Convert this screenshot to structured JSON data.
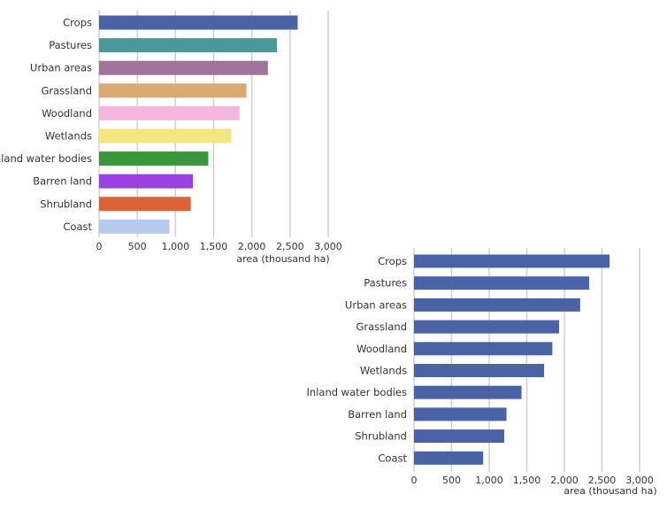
{
  "colors": {
    "grid": "#d0d0d0",
    "axis_text": "#333333",
    "uniform_bar": "#4a62a6"
  },
  "chart_data": [
    {
      "type": "bar",
      "orientation": "horizontal",
      "title": "",
      "xlabel": "area (thousand ha)",
      "ylabel": "",
      "xlim": [
        0,
        3000
      ],
      "ticks": [
        0,
        500,
        1000,
        1500,
        2000,
        2500,
        3000
      ],
      "tick_labels": [
        "0",
        "500",
        "1,000",
        "1,500",
        "2,000",
        "2,500",
        "3,000"
      ],
      "grid": true,
      "categories": [
        "Crops",
        "Pastures",
        "Urban areas",
        "Grassland",
        "Woodland",
        "Wetlands",
        "Inland water bodies",
        "Barren land",
        "Shrubland",
        "Coast"
      ],
      "values": [
        2600,
        2330,
        2210,
        1930,
        1840,
        1730,
        1430,
        1230,
        1200,
        920
      ],
      "bar_colors": [
        "#4a62a6",
        "#4b9899",
        "#a0739a",
        "#dba874",
        "#f4b6dd",
        "#f3e57f",
        "#3a963a",
        "#9a42e0",
        "#db6236",
        "#b6c9ee"
      ]
    },
    {
      "type": "bar",
      "orientation": "horizontal",
      "title": "",
      "xlabel": "area (thousand ha)",
      "ylabel": "",
      "xlim": [
        0,
        3000
      ],
      "ticks": [
        0,
        500,
        1000,
        1500,
        2000,
        2500,
        3000
      ],
      "tick_labels": [
        "0",
        "500",
        "1,000",
        "1,500",
        "2,000",
        "2,500",
        "3,000"
      ],
      "grid": true,
      "categories": [
        "Crops",
        "Pastures",
        "Urban areas",
        "Grassland",
        "Woodland",
        "Wetlands",
        "Inland water bodies",
        "Barren land",
        "Shrubland",
        "Coast"
      ],
      "values": [
        2600,
        2330,
        2210,
        1930,
        1840,
        1730,
        1430,
        1230,
        1200,
        920
      ],
      "bar_colors": [
        "#4a62a6",
        "#4a62a6",
        "#4a62a6",
        "#4a62a6",
        "#4a62a6",
        "#4a62a6",
        "#4a62a6",
        "#4a62a6",
        "#4a62a6",
        "#4a62a6"
      ]
    }
  ]
}
